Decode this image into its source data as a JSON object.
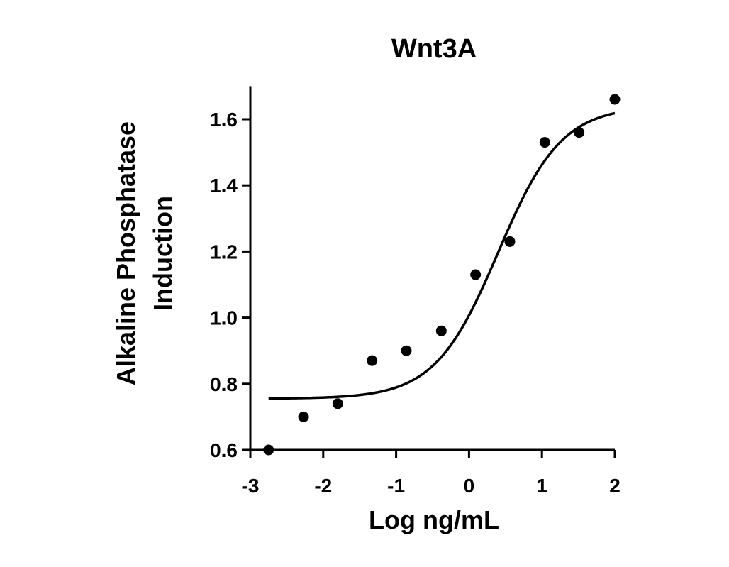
{
  "chart_data": {
    "type": "scatter",
    "title": "Wnt3A",
    "xlabel": "Log ng/mL",
    "ylabel_lines": [
      "Alkaline Phosphatase",
      "Induction"
    ],
    "xlim": [
      -3,
      2
    ],
    "ylim": [
      0.6,
      1.7
    ],
    "x_ticks": [
      -3,
      -2,
      -1,
      0,
      1,
      2
    ],
    "x_tick_labels": [
      "-3",
      "-2",
      "-1",
      "0",
      "1",
      "2"
    ],
    "y_ticks": [
      0.6,
      0.8,
      1.0,
      1.2,
      1.4,
      1.6
    ],
    "y_tick_labels": [
      "0.6",
      "0.8",
      "1.0",
      "1.2",
      "1.4",
      "1.6"
    ],
    "grid": false,
    "legend": "none",
    "series": [
      {
        "kind": "points",
        "x": [
          -2.75,
          -2.27,
          -1.8,
          -1.33,
          -0.86,
          -0.38,
          0.09,
          0.56,
          1.04,
          1.51,
          2.0
        ],
        "y": [
          0.6,
          0.7,
          0.74,
          0.87,
          0.9,
          0.96,
          1.13,
          1.23,
          1.53,
          1.56,
          1.66
        ]
      },
      {
        "kind": "fit",
        "model": "four-parameter logistic",
        "bottom": 0.755,
        "top": 1.64,
        "log_ec50": 0.4,
        "hill_slope": 1.0,
        "x_range": [
          -2.75,
          2.0
        ]
      }
    ]
  }
}
